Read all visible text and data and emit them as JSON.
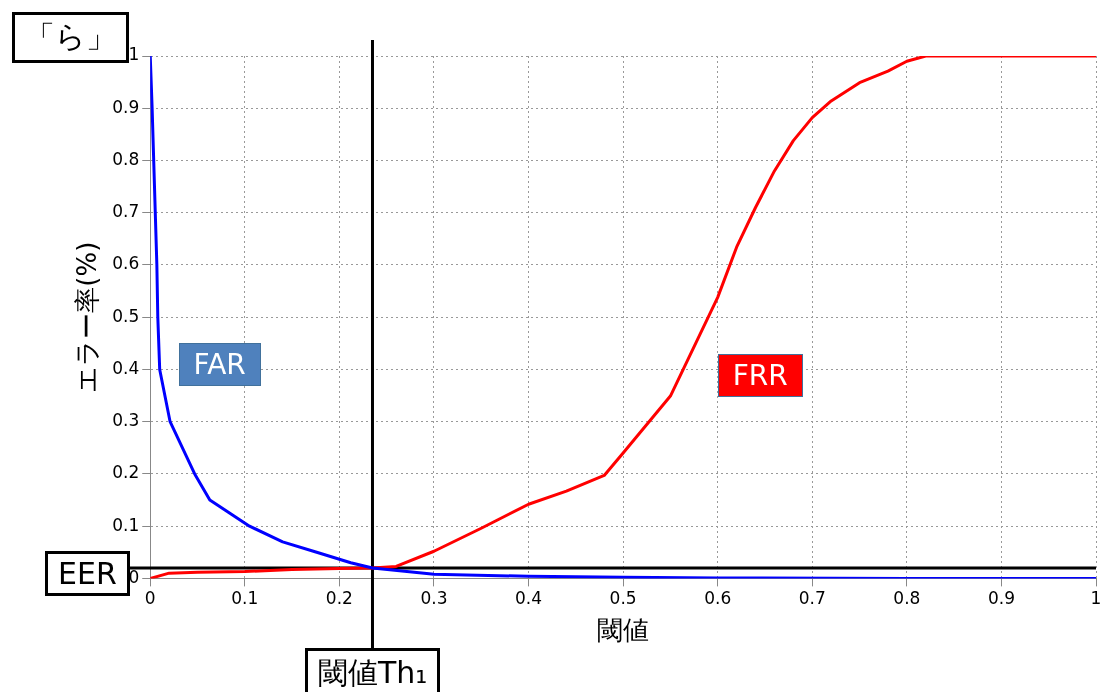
{
  "chart_data": {
    "type": "line",
    "xlabel": "閾値",
    "ylabel": "エラー率(%)",
    "xlim": [
      0,
      1
    ],
    "ylim": [
      0,
      1
    ],
    "xticks": [
      0,
      0.1,
      0.2,
      0.3,
      0.4,
      0.5,
      0.6,
      0.7,
      0.8,
      0.9,
      1
    ],
    "yticks": [
      0,
      0.1,
      0.2,
      0.3,
      0.4,
      0.5,
      0.6,
      0.7,
      0.8,
      0.9,
      1
    ],
    "grid": true,
    "legend": false,
    "marker": "none",
    "line_style": "solid",
    "series": [
      {
        "name": "FAR",
        "color": "#0000ff",
        "x": [
          0,
          0.002,
          0.007,
          0.008,
          0.01,
          0.021,
          0.047,
          0.063,
          0.105,
          0.14,
          0.176,
          0.212,
          0.235,
          0.3,
          0.4,
          0.5,
          0.6,
          0.8,
          1
        ],
        "values": [
          1,
          0.9,
          0.6,
          0.5,
          0.4,
          0.3,
          0.2,
          0.15,
          0.1,
          0.07,
          0.05,
          0.03,
          0.02,
          0.008,
          0.004,
          0.002,
          0.001,
          0,
          0
        ]
      },
      {
        "name": "FRR",
        "color": "#ff0000",
        "x": [
          0,
          0.02,
          0.05,
          0.1,
          0.15,
          0.2,
          0.235,
          0.26,
          0.3,
          0.35,
          0.4,
          0.44,
          0.48,
          0.5,
          0.55,
          0.6,
          0.62,
          0.64,
          0.66,
          0.68,
          0.7,
          0.72,
          0.75,
          0.78,
          0.8,
          0.82,
          1
        ],
        "values": [
          0,
          0.01,
          0.012,
          0.013,
          0.017,
          0.019,
          0.02,
          0.023,
          0.052,
          0.096,
          0.142,
          0.167,
          0.197,
          0.24,
          0.349,
          0.538,
          0.634,
          0.71,
          0.78,
          0.838,
          0.882,
          0.914,
          0.949,
          0.971,
          0.99,
          1,
          1
        ]
      }
    ],
    "ref_lines": [
      {
        "axis": "x",
        "value": 0.235,
        "label": "閾値Th₁",
        "color": "#000000"
      },
      {
        "axis": "y",
        "value": 0.02,
        "label": "EER",
        "color": "#000000"
      }
    ],
    "annotations": [
      "「ら」"
    ]
  }
}
